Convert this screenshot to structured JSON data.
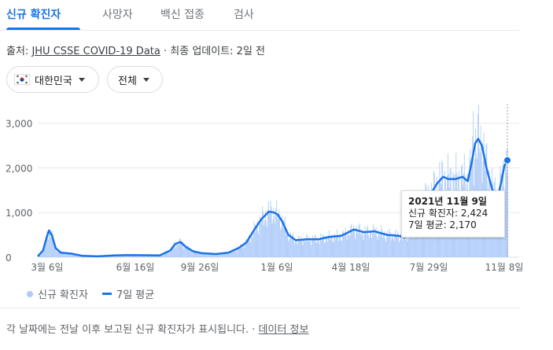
{
  "tabs": [
    {
      "label": "신규 확진자",
      "active": true
    },
    {
      "label": "사망자"
    },
    {
      "label": "백신 접종"
    },
    {
      "label": "검사"
    }
  ],
  "source": {
    "prefix": "출처: ",
    "link": "JHU CSSE COVID-19 Data",
    "sep": " · ",
    "updated": "최종 업데이트: 2일 전"
  },
  "filters": {
    "country": "대한민국",
    "country_flag_icon": "south-korea-flag-icon",
    "scope": "전체"
  },
  "tooltip": {
    "date": "2021년 11월 9일",
    "new_cases": "신규 확진자: 2,424",
    "avg": "7일 평균: 2,170"
  },
  "legend": {
    "bars_label": "신규 확진자",
    "line_label": "7일 평균"
  },
  "footnote": {
    "text": "각 날짜에는 전날 이후 보고된 신규 확진자가 표시됩니다. · ",
    "link": "데이터 정보"
  },
  "colors": {
    "bars": "#aecbfa",
    "line": "#1a73e8",
    "active_tab": "#1a73e8",
    "grid": "#e8eaed"
  },
  "chart_data": {
    "type": "bar",
    "x_ticks": [
      "3월 6일",
      "6월 16일",
      "9월 26일",
      "1월 6일",
      "4월 18일",
      "7월 29일",
      "11월 8일"
    ],
    "y_ticks": [
      "0",
      "1,000",
      "2,000",
      "3,000"
    ],
    "ylim": [
      0,
      3300
    ],
    "grid": true,
    "series": [
      {
        "name": "7일 평균",
        "type": "line",
        "x": [
          "2020-02-20",
          "2020-02-27",
          "2020-03-03",
          "2020-03-06",
          "2020-03-10",
          "2020-03-15",
          "2020-03-22",
          "2020-04-05",
          "2020-04-20",
          "2020-05-10",
          "2020-06-01",
          "2020-06-16",
          "2020-07-01",
          "2020-08-01",
          "2020-08-15",
          "2020-08-22",
          "2020-08-29",
          "2020-09-05",
          "2020-09-15",
          "2020-09-26",
          "2020-10-15",
          "2020-11-01",
          "2020-11-15",
          "2020-11-25",
          "2020-12-05",
          "2020-12-15",
          "2020-12-25",
          "2021-01-01",
          "2021-01-06",
          "2021-01-12",
          "2021-01-20",
          "2021-01-30",
          "2021-02-15",
          "2021-03-01",
          "2021-03-15",
          "2021-04-01",
          "2021-04-18",
          "2021-05-01",
          "2021-05-15",
          "2021-06-01",
          "2021-06-15",
          "2021-06-25",
          "2021-07-03",
          "2021-07-10",
          "2021-07-18",
          "2021-07-29",
          "2021-08-07",
          "2021-08-15",
          "2021-08-22",
          "2021-09-01",
          "2021-09-10",
          "2021-09-17",
          "2021-09-22",
          "2021-09-27",
          "2021-10-01",
          "2021-10-06",
          "2021-10-12",
          "2021-10-20",
          "2021-10-28",
          "2021-11-01",
          "2021-11-05",
          "2021-11-09"
        ],
        "values": [
          20,
          150,
          450,
          600,
          480,
          200,
          100,
          80,
          30,
          20,
          40,
          45,
          45,
          40,
          150,
          300,
          340,
          230,
          130,
          90,
          70,
          100,
          210,
          330,
          600,
          850,
          1020,
          1000,
          950,
          800,
          500,
          380,
          400,
          400,
          450,
          480,
          620,
          560,
          580,
          500,
          480,
          450,
          600,
          1000,
          1250,
          1400,
          1650,
          1800,
          1750,
          1750,
          1800,
          1700,
          2100,
          2550,
          2650,
          2500,
          2000,
          1500,
          1400,
          1700,
          2050,
          2170
        ]
      },
      {
        "name": "신규 확진자",
        "type": "bar",
        "highlights": [
          {
            "x": "2021-09-24",
            "value": 3270
          },
          {
            "x": "2021-11-09",
            "value": 2424
          }
        ]
      }
    ]
  }
}
